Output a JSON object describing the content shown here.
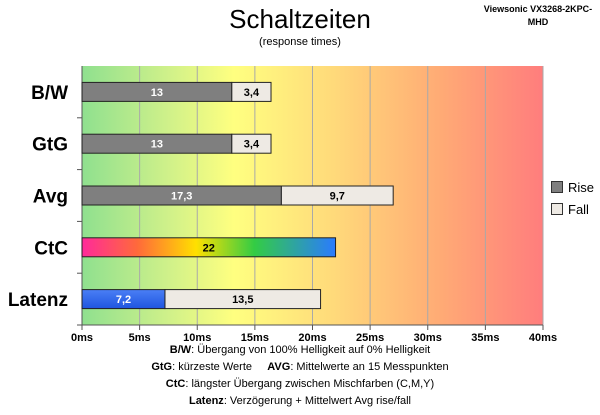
{
  "chart_data": {
    "type": "bar",
    "stacked": true,
    "orientation": "horizontal",
    "title": "Schaltzeiten",
    "subtitle": "(response times)",
    "device": "Viewsonic VX3268-2KPC-MHD",
    "categories": [
      "B/W",
      "GtG",
      "Avg",
      "CtC",
      "Latenz"
    ],
    "series": [
      {
        "name": "Rise",
        "color": "#7f7f7f",
        "values": [
          13,
          13,
          17.3,
          22,
          7.2
        ],
        "labels": [
          "13",
          "13",
          "17,3",
          "22",
          "7,2"
        ]
      },
      {
        "name": "Fall",
        "color": "#eeeae4",
        "values": [
          3.4,
          3.4,
          9.7,
          null,
          13.5
        ],
        "labels": [
          "3,4",
          "3,4",
          "9,7",
          "",
          "13,5"
        ]
      }
    ],
    "special_fills": {
      "CtC": "rainbow-gradient",
      "Latenz": "#3366ee"
    },
    "xlim": [
      0,
      40
    ],
    "xticks": [
      "0ms",
      "5ms",
      "10ms",
      "15ms",
      "20ms",
      "25ms",
      "30ms",
      "35ms",
      "40ms"
    ],
    "tick_step": 5,
    "background": "green-yellow-red-gradient",
    "legend_position": "right",
    "grid": true
  },
  "notes": [
    {
      "key": "B/W",
      "text": ":  Übergang von 100% Helligkeit auf 0% Helligkeit"
    },
    {
      "key": "GtG",
      "text": ": kürzeste  Werte",
      "key2": "AVG",
      "text2": ": Mittelwerte  an 15 Messpunkten"
    },
    {
      "key": "CtC",
      "text": ": längster Übergang  zwischen Mischfarben (C,M,Y)"
    },
    {
      "key": "Latenz",
      "text": ": Verzögerung  + Mittelwert  Avg rise/fall"
    }
  ]
}
